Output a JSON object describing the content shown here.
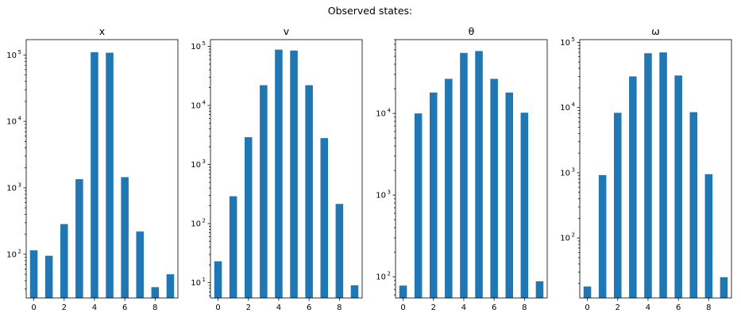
{
  "figure": {
    "suptitle": "Observed states:",
    "bar_color": "#1f77b4"
  },
  "chart_data": [
    {
      "type": "bar",
      "title": "x",
      "yscale": "log",
      "ylim": [
        22,
        170000
      ],
      "xlim": [
        -0.5,
        9.5
      ],
      "yticks": [
        {
          "base": "10",
          "exp": "2",
          "value": 100
        },
        {
          "base": "10",
          "exp": "3",
          "value": 1000
        },
        {
          "base": "10",
          "exp": "4",
          "value": 10000
        },
        {
          "base": "10",
          "exp": "5",
          "value": 100000
        }
      ],
      "xticks": [
        "0",
        "2",
        "4",
        "6",
        "8"
      ],
      "x": [
        0,
        1,
        2,
        3,
        4,
        5,
        6,
        7,
        8,
        9
      ],
      "values": [
        115,
        95,
        285,
        1350,
        110000,
        108000,
        1450,
        220,
        32,
        50
      ]
    },
    {
      "type": "bar",
      "title": "v",
      "yscale": "log",
      "ylim": [
        5.5,
        130000
      ],
      "xlim": [
        -0.5,
        9.5
      ],
      "yticks": [
        {
          "base": "10",
          "exp": "1",
          "value": 10
        },
        {
          "base": "10",
          "exp": "2",
          "value": 100
        },
        {
          "base": "10",
          "exp": "3",
          "value": 1000
        },
        {
          "base": "10",
          "exp": "4",
          "value": 10000
        },
        {
          "base": "10",
          "exp": "5",
          "value": 100000
        }
      ],
      "xticks": [
        "0",
        "2",
        "4",
        "6",
        "8"
      ],
      "x": [
        0,
        1,
        2,
        3,
        4,
        5,
        6,
        7,
        8,
        9
      ],
      "values": [
        23,
        290,
        2900,
        22000,
        88000,
        85000,
        22000,
        2800,
        215,
        9
      ]
    },
    {
      "type": "bar",
      "title": "θ",
      "yscale": "log",
      "ylim": [
        55,
        80000
      ],
      "xlim": [
        -0.5,
        9.5
      ],
      "yticks": [
        {
          "base": "10",
          "exp": "2",
          "value": 100
        },
        {
          "base": "10",
          "exp": "3",
          "value": 1000
        },
        {
          "base": "10",
          "exp": "4",
          "value": 10000
        }
      ],
      "xticks": [
        "0",
        "2",
        "4",
        "6",
        "8"
      ],
      "x": [
        0,
        1,
        2,
        3,
        4,
        5,
        6,
        7,
        8,
        9
      ],
      "values": [
        78,
        10000,
        18000,
        26500,
        55000,
        58000,
        26500,
        18000,
        10200,
        88
      ]
    },
    {
      "type": "bar",
      "title": "ω",
      "yscale": "log",
      "ylim": [
        12,
        110000
      ],
      "xlim": [
        -0.5,
        9.5
      ],
      "yticks": [
        {
          "base": "10",
          "exp": "2",
          "value": 100
        },
        {
          "base": "10",
          "exp": "3",
          "value": 1000
        },
        {
          "base": "10",
          "exp": "4",
          "value": 10000
        },
        {
          "base": "10",
          "exp": "5",
          "value": 100000
        }
      ],
      "xticks": [
        "0",
        "2",
        "4",
        "6",
        "8"
      ],
      "x": [
        0,
        1,
        2,
        3,
        4,
        5,
        6,
        7,
        8,
        9
      ],
      "values": [
        18,
        920,
        8300,
        30000,
        68000,
        70000,
        31000,
        8500,
        950,
        25
      ]
    }
  ]
}
